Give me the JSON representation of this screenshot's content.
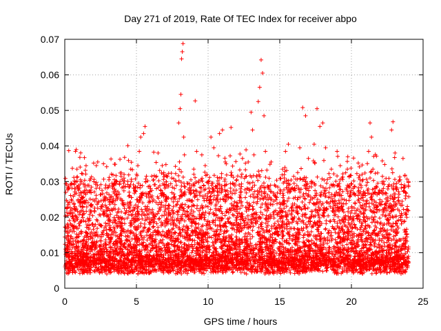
{
  "chart_data": {
    "type": "scatter",
    "title": "Day 271 of 2019, Rate Of TEC Index for receiver abpo",
    "xlabel": "GPS time / hours",
    "ylabel": "ROTI / TECUs",
    "xlim": [
      0,
      25
    ],
    "ylim": [
      0,
      0.07
    ],
    "grid": "dotted",
    "legend": "none",
    "marker": "plus",
    "color": "#ff0000",
    "x_ticks": [
      {
        "value": 0,
        "label": "0"
      },
      {
        "value": 5,
        "label": "5"
      },
      {
        "value": 10,
        "label": "10"
      },
      {
        "value": 15,
        "label": "15"
      },
      {
        "value": 20,
        "label": "20"
      },
      {
        "value": 25,
        "label": "25"
      }
    ],
    "y_ticks": [
      {
        "value": 0,
        "label": "0"
      },
      {
        "value": 0.01,
        "label": "0.01"
      },
      {
        "value": 0.02,
        "label": "0.02"
      },
      {
        "value": 0.03,
        "label": "0.03"
      },
      {
        "value": 0.04,
        "label": "0.04"
      },
      {
        "value": 0.05,
        "label": "0.05"
      },
      {
        "value": 0.06,
        "label": "0.06"
      },
      {
        "value": 0.07,
        "label": "0.07"
      }
    ],
    "series": [
      {
        "name": "ROTI",
        "points": [
          [
            0.05,
            0.0065
          ],
          [
            0.1,
            0.009
          ],
          [
            0.15,
            0.012
          ],
          [
            0.2,
            0.0155
          ],
          [
            0.25,
            0.0235
          ],
          [
            0.3,
            0.0075
          ],
          [
            0.35,
            0.011
          ],
          [
            0.4,
            0.005
          ],
          [
            0.45,
            0.0145
          ],
          [
            0.5,
            0.008
          ],
          [
            0.55,
            0.0175
          ],
          [
            0.6,
            0.006
          ],
          [
            0.65,
            0.0295
          ],
          [
            0.7,
            0.022
          ],
          [
            0.75,
            0.0385
          ],
          [
            0.8,
            0.039
          ],
          [
            0.85,
            0.0335
          ],
          [
            0.9,
            0.0285
          ],
          [
            0.95,
            0.0105
          ],
          [
            1.0,
            0.007
          ],
          [
            1.1,
            0.0305
          ],
          [
            1.2,
            0.0255
          ],
          [
            1.3,
            0.0135
          ],
          [
            1.4,
            0.0285
          ],
          [
            1.5,
            0.009
          ],
          [
            1.6,
            0.0195
          ],
          [
            1.7,
            0.006
          ],
          [
            1.8,
            0.0215
          ],
          [
            1.9,
            0.0115
          ],
          [
            2.0,
            0.0075
          ],
          [
            2.1,
            0.0245
          ],
          [
            2.2,
            0.0345
          ],
          [
            2.3,
            0.0355
          ],
          [
            2.4,
            0.018
          ],
          [
            2.5,
            0.0085
          ],
          [
            2.6,
            0.0275
          ],
          [
            2.7,
            0.035
          ],
          [
            2.8,
            0.0125
          ],
          [
            2.9,
            0.006
          ],
          [
            3.0,
            0.0205
          ],
          [
            3.1,
            0.0095
          ],
          [
            3.2,
            0.0165
          ],
          [
            3.3,
            0.0295
          ],
          [
            3.4,
            0.0065
          ],
          [
            3.5,
            0.0235
          ],
          [
            3.6,
            0.0125
          ],
          [
            3.7,
            0.0075
          ],
          [
            3.8,
            0.0265
          ],
          [
            3.9,
            0.0185
          ],
          [
            4.0,
            0.0305
          ],
          [
            4.1,
            0.0095
          ],
          [
            4.2,
            0.0285
          ],
          [
            4.3,
            0.0135
          ],
          [
            4.4,
            0.0401
          ],
          [
            4.5,
            0.0225
          ],
          [
            4.6,
            0.0335
          ],
          [
            4.7,
            0.0075
          ],
          [
            4.8,
            0.0155
          ],
          [
            4.9,
            0.0275
          ],
          [
            5.0,
            0.0105
          ],
          [
            5.1,
            0.0345
          ],
          [
            5.2,
            0.0385
          ],
          [
            5.3,
            0.0425
          ],
          [
            5.4,
            0.0195
          ],
          [
            5.5,
            0.0435
          ],
          [
            5.6,
            0.0455
          ],
          [
            5.7,
            0.0315
          ],
          [
            5.8,
            0.0085
          ],
          [
            5.9,
            0.0245
          ],
          [
            6.0,
            0.0125
          ],
          [
            6.2,
            0.0305
          ],
          [
            6.4,
            0.0075
          ],
          [
            6.6,
            0.0225
          ],
          [
            6.8,
            0.0345
          ],
          [
            7.0,
            0.0175
          ],
          [
            7.2,
            0.0285
          ],
          [
            7.4,
            0.0095
          ],
          [
            7.6,
            0.0255
          ],
          [
            7.8,
            0.0135
          ],
          [
            7.95,
            0.0465
          ],
          [
            8.05,
            0.0505
          ],
          [
            8.1,
            0.0545
          ],
          [
            8.15,
            0.0645
          ],
          [
            8.2,
            0.0665
          ],
          [
            8.25,
            0.0688
          ],
          [
            8.3,
            0.0425
          ],
          [
            8.35,
            0.0375
          ],
          [
            8.4,
            0.0285
          ],
          [
            8.5,
            0.0155
          ],
          [
            8.6,
            0.0085
          ],
          [
            8.7,
            0.0195
          ],
          [
            8.8,
            0.0305
          ],
          [
            8.9,
            0.0245
          ],
          [
            9.0,
            0.0335
          ],
          [
            9.1,
            0.0527
          ],
          [
            9.2,
            0.0385
          ],
          [
            9.3,
            0.0125
          ],
          [
            9.4,
            0.0075
          ],
          [
            9.6,
            0.0225
          ],
          [
            9.8,
            0.0345
          ],
          [
            10.0,
            0.0155
          ],
          [
            10.2,
            0.0425
          ],
          [
            10.4,
            0.0395
          ],
          [
            10.6,
            0.0285
          ],
          [
            10.8,
            0.0435
          ],
          [
            11.0,
            0.0445
          ],
          [
            11.2,
            0.0355
          ],
          [
            11.4,
            0.0265
          ],
          [
            11.6,
            0.0452
          ],
          [
            11.8,
            0.0205
          ],
          [
            12.0,
            0.0305
          ],
          [
            12.2,
            0.0135
          ],
          [
            12.4,
            0.0365
          ],
          [
            12.6,
            0.0255
          ],
          [
            12.8,
            0.0355
          ],
          [
            13.0,
            0.0495
          ],
          [
            13.1,
            0.0445
          ],
          [
            13.2,
            0.0375
          ],
          [
            13.3,
            0.0185
          ],
          [
            13.5,
            0.0525
          ],
          [
            13.6,
            0.0565
          ],
          [
            13.7,
            0.0642
          ],
          [
            13.8,
            0.0605
          ],
          [
            13.9,
            0.0485
          ],
          [
            14.0,
            0.0385
          ],
          [
            14.2,
            0.0285
          ],
          [
            14.4,
            0.0355
          ],
          [
            14.6,
            0.0175
          ],
          [
            14.8,
            0.0255
          ],
          [
            15.0,
            0.0105
          ],
          [
            15.2,
            0.0335
          ],
          [
            15.4,
            0.0385
          ],
          [
            15.6,
            0.0405
          ],
          [
            15.8,
            0.0225
          ],
          [
            16.0,
            0.0295
          ],
          [
            16.2,
            0.0145
          ],
          [
            16.4,
            0.0395
          ],
          [
            16.6,
            0.0508
          ],
          [
            16.8,
            0.0485
          ],
          [
            17.0,
            0.0365
          ],
          [
            17.2,
            0.0285
          ],
          [
            17.4,
            0.0405
          ],
          [
            17.6,
            0.0505
          ],
          [
            17.8,
            0.0455
          ],
          [
            18.0,
            0.0465
          ],
          [
            18.2,
            0.0395
          ],
          [
            18.4,
            0.0255
          ],
          [
            18.6,
            0.0335
          ],
          [
            18.8,
            0.0205
          ],
          [
            19.0,
            0.0385
          ],
          [
            19.2,
            0.0305
          ],
          [
            19.4,
            0.0165
          ],
          [
            19.6,
            0.0325
          ],
          [
            19.8,
            0.0225
          ],
          [
            20.0,
            0.0135
          ],
          [
            20.2,
            0.0285
          ],
          [
            20.4,
            0.0195
          ],
          [
            20.6,
            0.0305
          ],
          [
            20.8,
            0.0255
          ],
          [
            21.0,
            0.0155
          ],
          [
            21.2,
            0.0385
          ],
          [
            21.3,
            0.0465
          ],
          [
            21.4,
            0.0425
          ],
          [
            21.5,
            0.0335
          ],
          [
            21.6,
            0.0245
          ],
          [
            21.8,
            0.0185
          ],
          [
            22.0,
            0.0105
          ],
          [
            22.2,
            0.0265
          ],
          [
            22.4,
            0.0205
          ],
          [
            22.6,
            0.0135
          ],
          [
            22.8,
            0.0445
          ],
          [
            22.9,
            0.0468
          ],
          [
            23.0,
            0.0255
          ],
          [
            23.2,
            0.0175
          ],
          [
            23.4,
            0.0305
          ],
          [
            23.6,
            0.0365
          ],
          [
            23.7,
            0.0285
          ],
          [
            23.8,
            0.0115
          ]
        ]
      }
    ]
  }
}
